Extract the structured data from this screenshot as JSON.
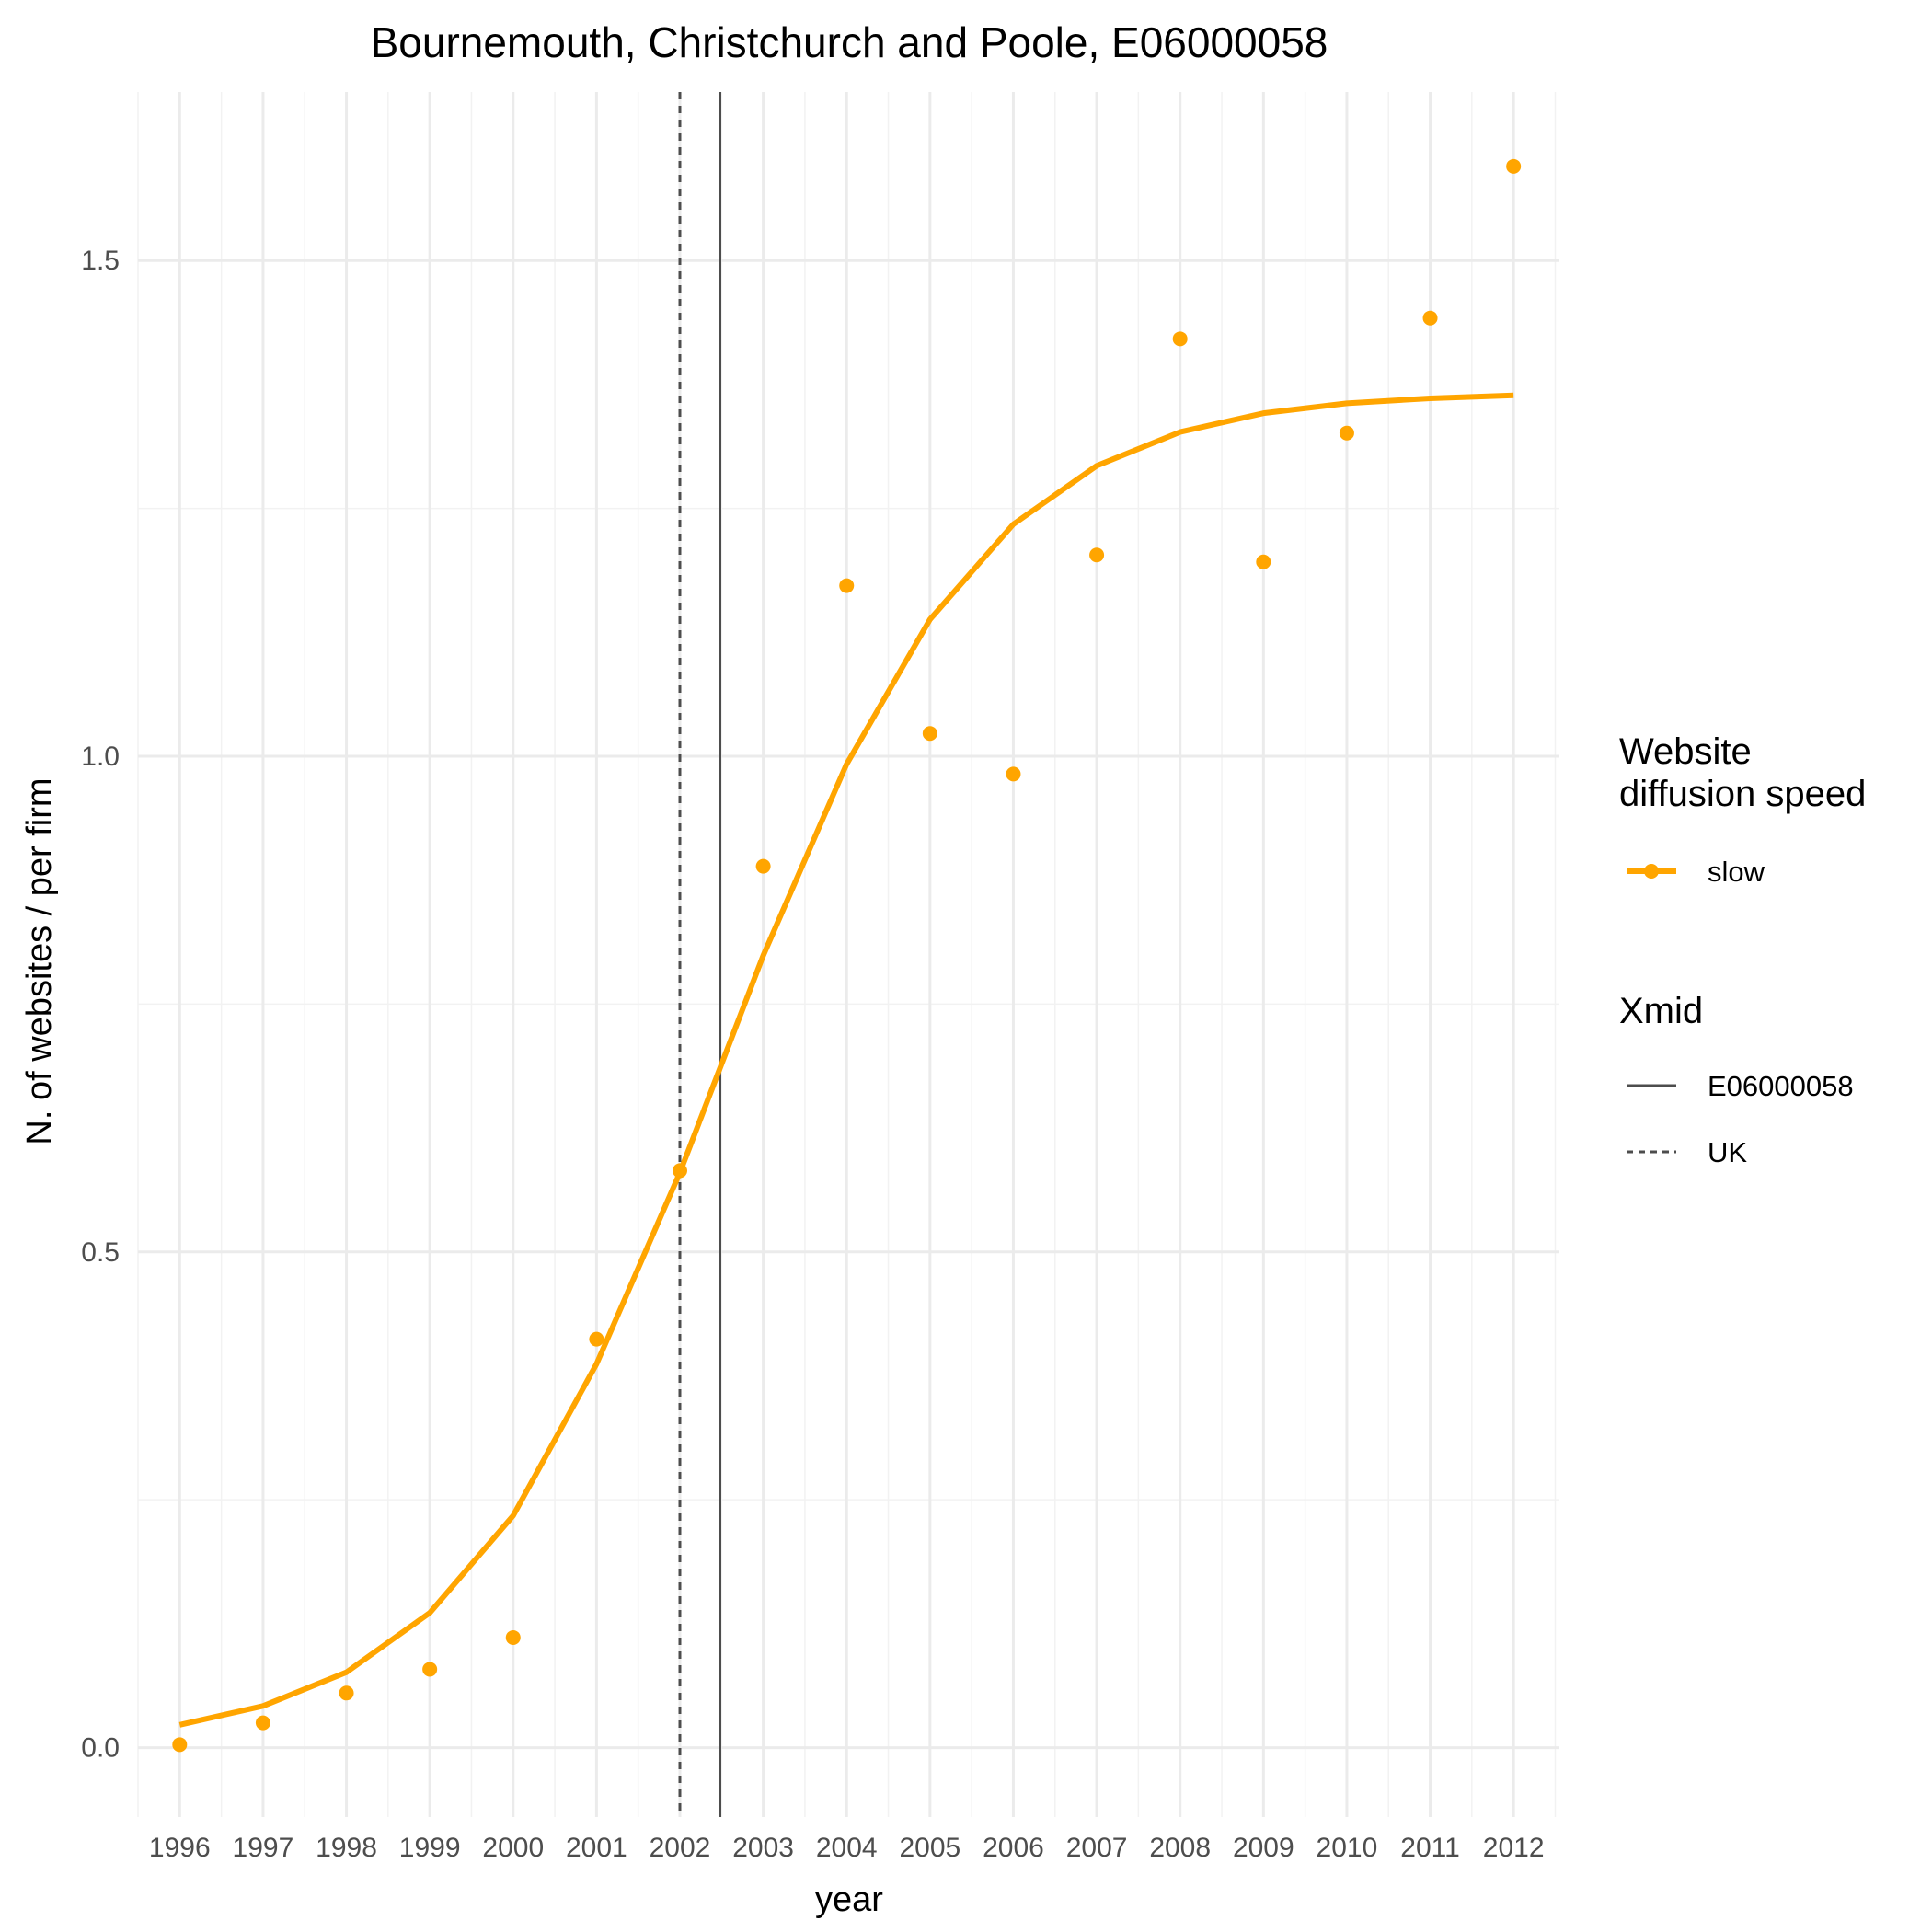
{
  "chart_data": {
    "type": "line",
    "title": "Bournemouth, Christchurch and Poole, E06000058",
    "xlabel": "year",
    "ylabel": "N. of websites / per firm",
    "x": [
      1996,
      1997,
      1998,
      1999,
      2000,
      2001,
      2002,
      2003,
      2004,
      2005,
      2006,
      2007,
      2008,
      2009,
      2010,
      2011,
      2012
    ],
    "x_tick_labels": [
      "1996",
      "1997",
      "1998",
      "1999",
      "2000",
      "2001",
      "2002",
      "2003",
      "2004",
      "2005",
      "2006",
      "2007",
      "2008",
      "2009",
      "2010",
      "2011",
      "2012"
    ],
    "y_ticks": [
      0.0,
      0.5,
      1.0,
      1.5
    ],
    "y_tick_labels": [
      "0.0",
      "0.5",
      "1.0",
      "1.5"
    ],
    "xlim": [
      1995.5,
      2012.55
    ],
    "ylim": [
      -0.07,
      1.67
    ],
    "series": [
      {
        "name": "slow",
        "kind": "points",
        "color": "#FFA500",
        "values": [
          0.003,
          0.025,
          0.055,
          0.079,
          0.111,
          0.412,
          0.582,
          0.889,
          1.172,
          1.023,
          0.982,
          1.203,
          1.421,
          1.196,
          1.326,
          1.442,
          1.595
        ]
      },
      {
        "name": "slow",
        "kind": "fitted-line",
        "color": "#FFA500",
        "values": [
          0.023,
          0.042,
          0.076,
          0.136,
          0.234,
          0.387,
          0.58,
          0.799,
          0.992,
          1.138,
          1.234,
          1.293,
          1.327,
          1.346,
          1.356,
          1.361,
          1.364
        ]
      }
    ],
    "vlines": [
      {
        "name": "E06000058",
        "x": 2002.48,
        "style": "solid",
        "color": "#4d4d4d"
      },
      {
        "name": "UK",
        "x": 2002.0,
        "style": "dashed",
        "color": "#4d4d4d"
      }
    ],
    "grid": true,
    "legend_position": "right",
    "legend": [
      {
        "title": "Website\ndiffusion speed",
        "title_lines": [
          "Website",
          "diffusion speed"
        ],
        "entries": [
          {
            "label": "slow",
            "color": "#FFA500"
          }
        ]
      },
      {
        "title": "Xmid",
        "title_lines": [
          "Xmid"
        ],
        "entries": [
          {
            "label": "E06000058",
            "style": "solid"
          },
          {
            "label": "UK",
            "style": "dashed"
          }
        ]
      }
    ]
  }
}
